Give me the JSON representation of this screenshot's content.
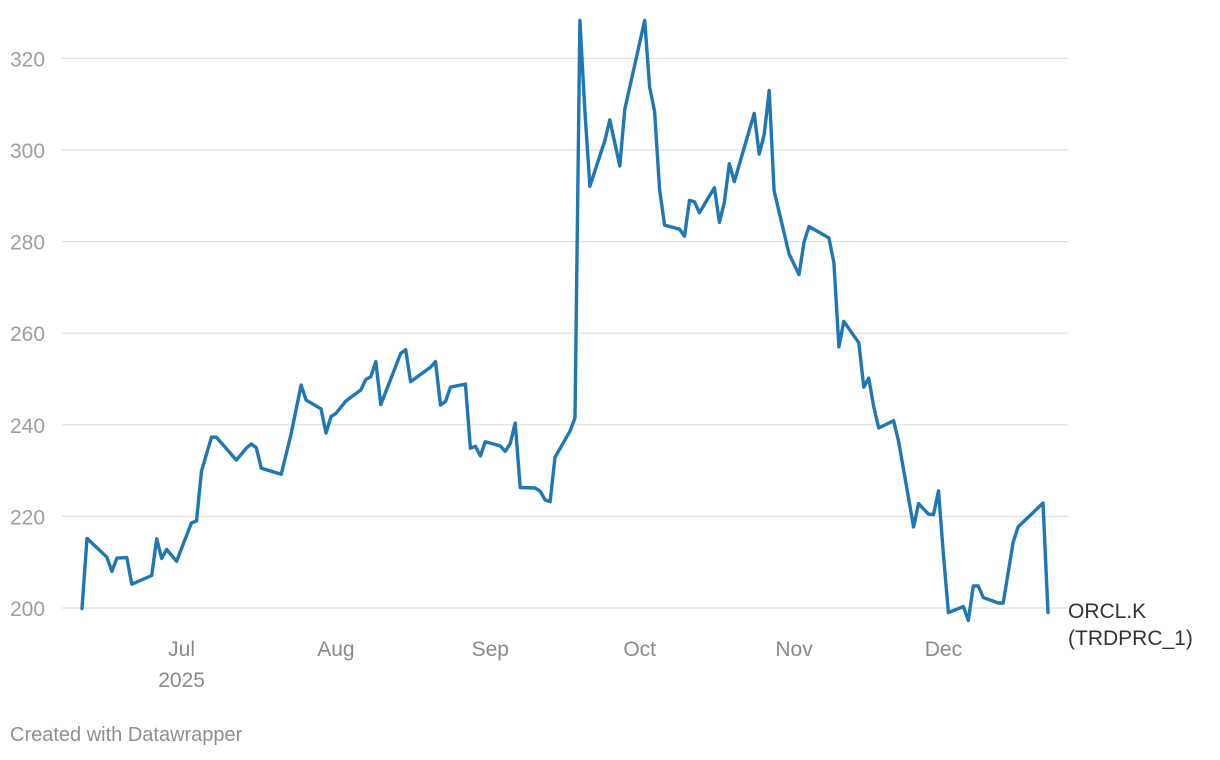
{
  "credit": "Created with Datawrapper",
  "colors": {
    "line": "#1f77b4",
    "grid": "#e0e0e0",
    "tick_text": "#9e9e9e"
  },
  "chart_data": {
    "type": "line",
    "title": "",
    "xlabel": "",
    "ylabel": "",
    "ylim": [
      195,
      330
    ],
    "yticks": [
      200,
      220,
      240,
      260,
      280,
      300,
      320
    ],
    "grid": true,
    "legend": "none",
    "xticks": [
      {
        "date": "2025-07-01",
        "label": "Jul",
        "sublabel": "2025"
      },
      {
        "date": "2025-08-01",
        "label": "Aug",
        "sublabel": ""
      },
      {
        "date": "2025-09-01",
        "label": "Sep",
        "sublabel": ""
      },
      {
        "date": "2025-10-01",
        "label": "Oct",
        "sublabel": ""
      },
      {
        "date": "2025-11-01",
        "label": "Nov",
        "sublabel": ""
      },
      {
        "date": "2025-12-01",
        "label": "Dec",
        "sublabel": ""
      }
    ],
    "series": [
      {
        "name": "ORCL.K (TRDPRC_1)",
        "label_lines": [
          "ORCL.K",
          "(TRDPRC_1)"
        ],
        "points": [
          [
            "2025-06-11",
            199.9
          ],
          [
            "2025-06-12",
            215.2
          ],
          [
            "2025-06-16",
            211.1
          ],
          [
            "2025-06-17",
            208.0
          ],
          [
            "2025-06-18",
            210.9
          ],
          [
            "2025-06-20",
            211.0
          ],
          [
            "2025-06-21",
            205.2
          ],
          [
            "2025-06-25",
            207.1
          ],
          [
            "2025-06-26",
            215.1
          ],
          [
            "2025-06-27",
            210.8
          ],
          [
            "2025-06-28",
            212.8
          ],
          [
            "2025-06-30",
            210.2
          ],
          [
            "2025-07-03",
            218.6
          ],
          [
            "2025-07-04",
            219.0
          ],
          [
            "2025-07-05",
            229.9
          ],
          [
            "2025-07-07",
            237.3
          ],
          [
            "2025-07-08",
            237.3
          ],
          [
            "2025-07-12",
            232.3
          ],
          [
            "2025-07-14",
            234.9
          ],
          [
            "2025-07-15",
            235.8
          ],
          [
            "2025-07-16",
            235.0
          ],
          [
            "2025-07-17",
            230.5
          ],
          [
            "2025-07-21",
            229.2
          ],
          [
            "2025-07-23",
            238.0
          ],
          [
            "2025-07-25",
            248.7
          ],
          [
            "2025-07-26",
            245.4
          ],
          [
            "2025-07-29",
            243.5
          ],
          [
            "2025-07-30",
            238.2
          ],
          [
            "2025-07-31",
            241.8
          ],
          [
            "2025-08-01",
            242.5
          ],
          [
            "2025-08-03",
            245.2
          ],
          [
            "2025-08-06",
            247.6
          ],
          [
            "2025-08-07",
            249.9
          ],
          [
            "2025-08-08",
            250.5
          ],
          [
            "2025-08-09",
            253.8
          ],
          [
            "2025-08-10",
            244.4
          ],
          [
            "2025-08-14",
            255.6
          ],
          [
            "2025-08-15",
            256.4
          ],
          [
            "2025-08-16",
            249.4
          ],
          [
            "2025-08-20",
            252.6
          ],
          [
            "2025-08-21",
            253.8
          ],
          [
            "2025-08-22",
            244.3
          ],
          [
            "2025-08-23",
            245.1
          ],
          [
            "2025-08-24",
            248.2
          ],
          [
            "2025-08-27",
            248.9
          ],
          [
            "2025-08-28",
            234.9
          ],
          [
            "2025-08-29",
            235.3
          ],
          [
            "2025-08-30",
            233.2
          ],
          [
            "2025-08-31",
            236.3
          ],
          [
            "2025-09-03",
            235.4
          ],
          [
            "2025-09-04",
            234.2
          ],
          [
            "2025-09-05",
            235.9
          ],
          [
            "2025-09-06",
            240.4
          ],
          [
            "2025-09-07",
            226.3
          ],
          [
            "2025-09-10",
            226.2
          ],
          [
            "2025-09-11",
            225.5
          ],
          [
            "2025-09-12",
            223.6
          ],
          [
            "2025-09-13",
            223.2
          ],
          [
            "2025-09-14",
            232.9
          ],
          [
            "2025-09-17",
            238.6
          ],
          [
            "2025-09-18",
            241.5
          ],
          [
            "2025-09-19",
            328.3
          ],
          [
            "2025-09-20",
            308.4
          ],
          [
            "2025-09-21",
            292.1
          ],
          [
            "2025-09-24",
            302.0
          ],
          [
            "2025-09-25",
            306.6
          ],
          [
            "2025-09-27",
            296.5
          ],
          [
            "2025-09-28",
            308.9
          ],
          [
            "2025-10-02",
            328.3
          ],
          [
            "2025-10-03",
            313.8
          ],
          [
            "2025-10-04",
            308.4
          ],
          [
            "2025-10-05",
            291.3
          ],
          [
            "2025-10-06",
            283.6
          ],
          [
            "2025-10-09",
            282.7
          ],
          [
            "2025-10-10",
            281.2
          ],
          [
            "2025-10-11",
            289.0
          ],
          [
            "2025-10-12",
            288.7
          ],
          [
            "2025-10-13",
            286.3
          ],
          [
            "2025-10-16",
            291.8
          ],
          [
            "2025-10-17",
            284.2
          ],
          [
            "2025-10-18",
            288.5
          ],
          [
            "2025-10-19",
            297.0
          ],
          [
            "2025-10-20",
            293.1
          ],
          [
            "2025-10-24",
            308.0
          ],
          [
            "2025-10-25",
            299.1
          ],
          [
            "2025-10-26",
            303.4
          ],
          [
            "2025-10-27",
            313.0
          ],
          [
            "2025-10-28",
            291.1
          ],
          [
            "2025-10-31",
            277.3
          ],
          [
            "2025-11-02",
            272.8
          ],
          [
            "2025-11-03",
            279.9
          ],
          [
            "2025-11-04",
            283.3
          ],
          [
            "2025-11-08",
            280.8
          ],
          [
            "2025-11-09",
            275.4
          ],
          [
            "2025-11-10",
            257.0
          ],
          [
            "2025-11-11",
            262.6
          ],
          [
            "2025-11-14",
            257.9
          ],
          [
            "2025-11-15",
            248.2
          ],
          [
            "2025-11-16",
            250.2
          ],
          [
            "2025-11-17",
            244.0
          ],
          [
            "2025-11-18",
            239.3
          ],
          [
            "2025-11-21",
            240.9
          ],
          [
            "2025-11-22",
            236.4
          ],
          [
            "2025-11-25",
            217.7
          ],
          [
            "2025-11-26",
            222.8
          ],
          [
            "2025-11-28",
            220.5
          ],
          [
            "2025-11-29",
            220.4
          ],
          [
            "2025-11-30",
            225.6
          ],
          [
            "2025-12-01",
            211.7
          ],
          [
            "2025-12-02",
            199.0
          ],
          [
            "2025-12-05",
            200.3
          ],
          [
            "2025-12-06",
            197.3
          ],
          [
            "2025-12-07",
            204.8
          ],
          [
            "2025-12-08",
            204.8
          ],
          [
            "2025-12-09",
            202.3
          ],
          [
            "2025-12-12",
            201.1
          ],
          [
            "2025-12-13",
            201.1
          ],
          [
            "2025-12-15",
            214.3
          ],
          [
            "2025-12-16",
            217.7
          ],
          [
            "2025-12-21",
            222.9
          ],
          [
            "2025-12-22",
            199.0
          ]
        ]
      }
    ]
  }
}
